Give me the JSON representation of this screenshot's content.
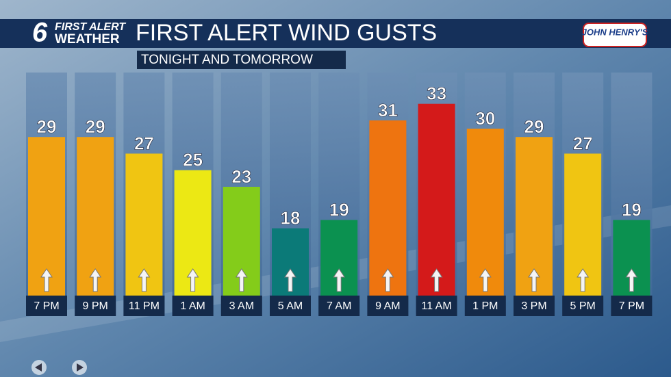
{
  "brand": {
    "line1": "FIRST ALERT",
    "line2": "WEATHER",
    "channel": "6"
  },
  "sponsor": "JOHN HENRY'S",
  "chart_data": {
    "type": "bar",
    "title": "FIRST ALERT WIND GUSTS",
    "subtitle": "TONIGHT AND TOMORROW",
    "categories": [
      "7 PM",
      "9 PM",
      "11 PM",
      "1 AM",
      "3 AM",
      "5 AM",
      "7 AM",
      "9 AM",
      "11 AM",
      "1 PM",
      "3 PM",
      "5 PM",
      "7 PM"
    ],
    "values": [
      29,
      29,
      27,
      25,
      23,
      18,
      19,
      31,
      33,
      30,
      29,
      27,
      19
    ],
    "colors": [
      "#f0a212",
      "#f0a212",
      "#f0c512",
      "#ece814",
      "#84cc1a",
      "#0b7a78",
      "#0b9150",
      "#ee7410",
      "#d41a1a",
      "#f08a0c",
      "#f0a212",
      "#f0c512",
      "#0b9150"
    ]
  }
}
